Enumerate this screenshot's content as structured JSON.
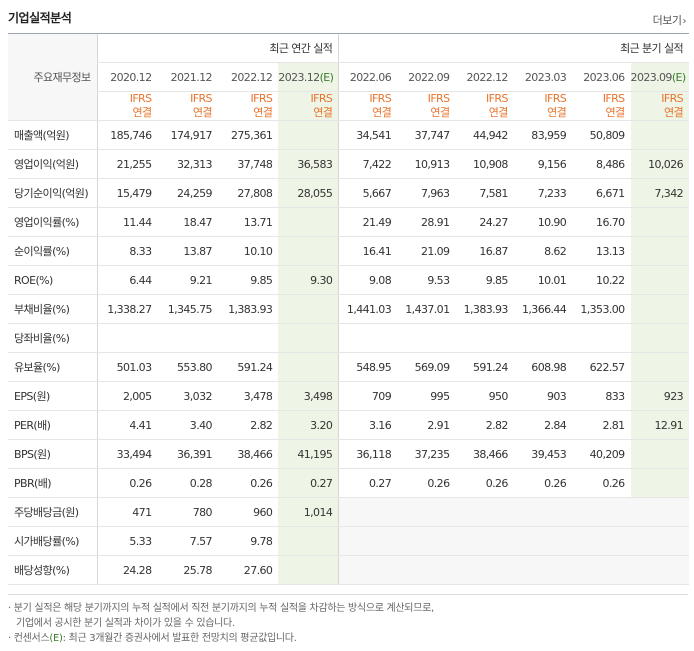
{
  "header": {
    "title": "기업실적분석",
    "more_label": "더보기",
    "more_chevron": "›"
  },
  "table": {
    "row_header_label": "주요재무정보",
    "annual_group_label": "최근 연간 실적",
    "quarter_group_label": "최근 분기 실적",
    "annual_periods": [
      "2020.12",
      "2021.12",
      "2022.12",
      "2023.12"
    ],
    "annual_est_suffix": "(E)",
    "quarter_periods": [
      "2022.06",
      "2022.09",
      "2022.12",
      "2023.03",
      "2023.06",
      "2023.09"
    ],
    "quarter_est_suffix": "(E)",
    "ifrs_line1": "IFRS",
    "ifrs_line2": "연결",
    "rows": [
      {
        "label": "매출액(억원)",
        "values": [
          "185,746",
          "174,917",
          "275,361",
          "",
          "34,541",
          "37,747",
          "44,942",
          "83,959",
          "50,809",
          ""
        ]
      },
      {
        "label": "영업이익(억원)",
        "values": [
          "21,255",
          "32,313",
          "37,748",
          "36,583",
          "7,422",
          "10,913",
          "10,908",
          "9,156",
          "8,486",
          "10,026"
        ]
      },
      {
        "label": "당기순이익(억원)",
        "values": [
          "15,479",
          "24,259",
          "27,808",
          "28,055",
          "5,667",
          "7,963",
          "7,581",
          "7,233",
          "6,671",
          "7,342"
        ]
      },
      {
        "label": "영업이익률(%)",
        "values": [
          "11.44",
          "18.47",
          "13.71",
          "",
          "21.49",
          "28.91",
          "24.27",
          "10.90",
          "16.70",
          ""
        ]
      },
      {
        "label": "순이익률(%)",
        "values": [
          "8.33",
          "13.87",
          "10.10",
          "",
          "16.41",
          "21.09",
          "16.87",
          "8.62",
          "13.13",
          ""
        ]
      },
      {
        "label": "ROE(%)",
        "values": [
          "6.44",
          "9.21",
          "9.85",
          "9.30",
          "9.08",
          "9.53",
          "9.85",
          "10.01",
          "10.22",
          ""
        ]
      },
      {
        "label": "부채비율(%)",
        "values": [
          "1,338.27",
          "1,345.75",
          "1,383.93",
          "",
          "1,441.03",
          "1,437.01",
          "1,383.93",
          "1,366.44",
          "1,353.00",
          ""
        ]
      },
      {
        "label": "당좌비율(%)",
        "values": [
          "",
          "",
          "",
          "",
          "",
          "",
          "",
          "",
          "",
          ""
        ]
      },
      {
        "label": "유보율(%)",
        "values": [
          "501.03",
          "553.80",
          "591.24",
          "",
          "548.95",
          "569.09",
          "591.24",
          "608.98",
          "622.57",
          ""
        ]
      },
      {
        "label": "EPS(원)",
        "values": [
          "2,005",
          "3,032",
          "3,478",
          "3,498",
          "709",
          "995",
          "950",
          "903",
          "833",
          "923"
        ]
      },
      {
        "label": "PER(배)",
        "values": [
          "4.41",
          "3.40",
          "2.82",
          "3.20",
          "3.16",
          "2.91",
          "2.82",
          "2.84",
          "2.81",
          "12.91"
        ]
      },
      {
        "label": "BPS(원)",
        "values": [
          "33,494",
          "36,391",
          "38,466",
          "41,195",
          "36,118",
          "37,235",
          "38,466",
          "39,453",
          "40,209",
          ""
        ]
      },
      {
        "label": "PBR(배)",
        "values": [
          "0.26",
          "0.28",
          "0.26",
          "0.27",
          "0.27",
          "0.26",
          "0.26",
          "0.26",
          "0.26",
          ""
        ]
      },
      {
        "label": "주당배당금(원)",
        "values": [
          "471",
          "780",
          "960",
          "1,014",
          "",
          "",
          "",
          "",
          "",
          ""
        ]
      },
      {
        "label": "시가배당률(%)",
        "values": [
          "5.33",
          "7.57",
          "9.78",
          "",
          "",
          "",
          "",
          "",
          "",
          ""
        ]
      },
      {
        "label": "배당성향(%)",
        "values": [
          "24.28",
          "25.78",
          "27.60",
          "",
          "",
          "",
          "",
          "",
          "",
          ""
        ]
      }
    ]
  },
  "notes": {
    "line1": "· 분기 실적은 해당 분기까지의 누적 실적에서 직전 분기까지의 누적 실적을 차감하는 방식으로 계산되므로,",
    "line2": "기업에서 공시한 분기 실적과 차이가 있을 수 있습니다.",
    "line3_prefix": "· 컨센서스",
    "line3_mark": "(E)",
    "line3_suffix": ": 최근 3개월간 증권사에서 발표한 전망치의 평균값입니다."
  },
  "colors": {
    "ifrs_orange": "#e8742b",
    "estimate_green_bg": "#eef5e6",
    "estimate_green_text": "#3b7d2b"
  }
}
